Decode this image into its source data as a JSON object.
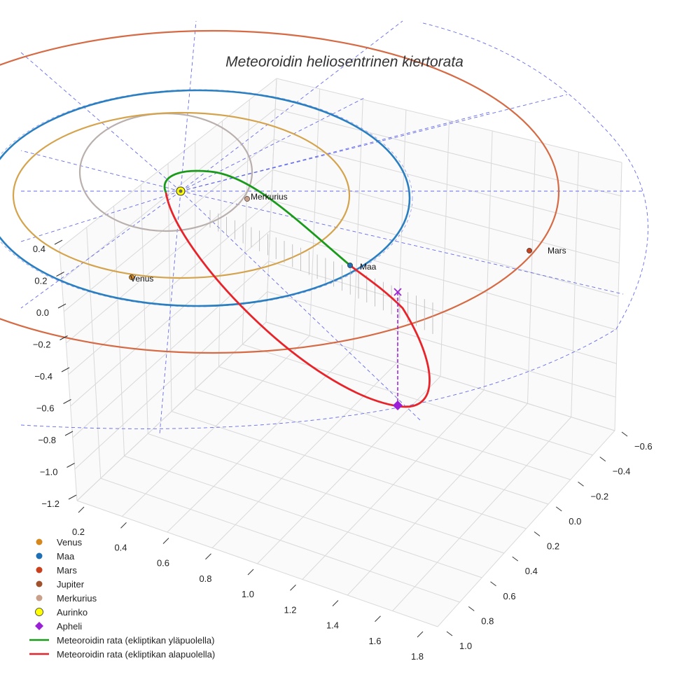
{
  "chart_data": {
    "type": "3d-line",
    "title": "Meteoroidin heliosentrinen kiertorata",
    "axes": {
      "z_ticks": [
        "0.4",
        "0.2",
        "0.0",
        "−0.2",
        "−0.4",
        "−0.6",
        "−0.8",
        "−1.0",
        "−1.2"
      ],
      "x_ticks": [
        "0.2",
        "0.4",
        "0.6",
        "0.8",
        "1.0",
        "1.2",
        "1.4",
        "1.6",
        "1.8"
      ],
      "y_ticks": [
        "−0.6",
        "−0.4",
        "−0.2",
        "0.0",
        "0.2",
        "0.4",
        "0.6",
        "0.8",
        "1.0"
      ],
      "z_range": [
        -1.25,
        0.45
      ],
      "x_range": [
        0.15,
        1.85
      ],
      "y_range": [
        -0.65,
        1.05
      ]
    },
    "planets": [
      {
        "name": "Merkurius",
        "label": "Merkurius",
        "color": "#c9a08a",
        "orbit_color": "#b9b0ae",
        "orbit_radius_au": 0.39
      },
      {
        "name": "Venus",
        "label": "Venus",
        "color": "#d4881e",
        "orbit_color": "#d4a34c",
        "orbit_radius_au": 0.72
      },
      {
        "name": "Maa",
        "label": "Maa",
        "color": "#1f6fb4",
        "orbit_color": "#2a7fc0",
        "orbit_radius_au": 1.0
      },
      {
        "name": "Mars",
        "label": "Mars",
        "color": "#c9401c",
        "orbit_color": "#d66a44",
        "orbit_radius_au": 1.52
      },
      {
        "name": "Aurinko",
        "label": "",
        "color": "#ffff00",
        "orbit_radius_au": 0
      }
    ],
    "series": [
      {
        "name": "Meteoroidin rata (ekliptikan yläpuolella)",
        "color": "#1a9a1a"
      },
      {
        "name": "Meteoroidin rata (ekliptikan alapuolella)",
        "color": "#e8242a"
      }
    ],
    "aphelion": {
      "label": "Apheli",
      "color": "#9a1fd6"
    }
  },
  "legend": {
    "items": [
      {
        "label": "Venus",
        "kind": "dot",
        "color": "#d4881e"
      },
      {
        "label": "Maa",
        "kind": "dot",
        "color": "#1f6fb4"
      },
      {
        "label": "Mars",
        "kind": "dot",
        "color": "#c9401c"
      },
      {
        "label": "Jupiter",
        "kind": "dot",
        "color": "#a0522d"
      },
      {
        "label": "Merkurius",
        "kind": "dot",
        "color": "#c9a08a"
      },
      {
        "label": "Aurinko",
        "kind": "sun",
        "color": "#ffff00"
      },
      {
        "label": "Apheli",
        "kind": "diamond",
        "color": "#9a1fd6"
      },
      {
        "label": "Meteoroidin rata (ekliptikan yläpuolella)",
        "kind": "line",
        "color": "#1a9a1a"
      },
      {
        "label": "Meteoroidin rata (ekliptikan alapuolella)",
        "kind": "line",
        "color": "#e8242a"
      }
    ]
  }
}
